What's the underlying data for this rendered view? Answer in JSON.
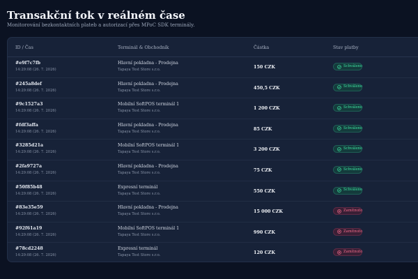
{
  "header": {
    "title": "Transakční tok v reálném čase",
    "subtitle": "Monitorování bezkontaktních plateb a autorizací přes MPoC SDK terminály."
  },
  "table": {
    "columns": {
      "id_time": "ID / Čas",
      "terminal": "Terminál & Obchodník",
      "amount": "Částka",
      "status": "Stav platby"
    },
    "rows": [
      {
        "id": "#e9f7c7fb",
        "time": "14:29:08 (26. 7. 2026)",
        "terminal": "Hlavní pokladna - Prodejna",
        "merchant": "Tapaya Test Store s.r.o.",
        "amount": "150 CZK",
        "status": "Schváleno",
        "status_type": "approved"
      },
      {
        "id": "#245a8def",
        "time": "14:29:08 (26. 7. 2026)",
        "terminal": "Hlavní pokladna - Prodejna",
        "merchant": "Tapaya Test Store s.r.o.",
        "amount": "450,5 CZK",
        "status": "Schváleno",
        "status_type": "approved"
      },
      {
        "id": "#9c1527a3",
        "time": "14:29:08 (26. 7. 2026)",
        "terminal": "Mobilní SoftPOS terminál 1",
        "merchant": "Tapaya Test Store s.r.o.",
        "amount": "1 200 CZK",
        "status": "Schváleno",
        "status_type": "approved"
      },
      {
        "id": "#fdf3affa",
        "time": "14:29:08 (26. 7. 2026)",
        "terminal": "Hlavní pokladna - Prodejna",
        "merchant": "Tapaya Test Store s.r.o.",
        "amount": "85 CZK",
        "status": "Schváleno",
        "status_type": "approved"
      },
      {
        "id": "#3285d21a",
        "time": "14:29:08 (26. 7. 2026)",
        "terminal": "Mobilní SoftPOS terminál 1",
        "merchant": "Tapaya Test Store s.r.o.",
        "amount": "3 200 CZK",
        "status": "Schváleno",
        "status_type": "approved"
      },
      {
        "id": "#2fa9727a",
        "time": "14:29:08 (26. 7. 2026)",
        "terminal": "Hlavní pokladna - Prodejna",
        "merchant": "Tapaya Test Store s.r.o.",
        "amount": "75 CZK",
        "status": "Schváleno",
        "status_type": "approved"
      },
      {
        "id": "#50f85b48",
        "time": "14:29:08 (26. 7. 2026)",
        "terminal": "Expresní terminál",
        "merchant": "Tapaya Test Store s.r.o.",
        "amount": "550 CZK",
        "status": "Schváleno",
        "status_type": "approved"
      },
      {
        "id": "#83e35e59",
        "time": "14:29:08 (26. 7. 2026)",
        "terminal": "Hlavní pokladna - Prodejna",
        "merchant": "Tapaya Test Store s.r.o.",
        "amount": "15 000 CZK",
        "status": "Zamítnuto",
        "status_type": "declined"
      },
      {
        "id": "#92f61a19",
        "time": "14:29:08 (26. 7. 2026)",
        "terminal": "Mobilní SoftPOS terminál 1",
        "merchant": "Tapaya Test Store s.r.o.",
        "amount": "990 CZK",
        "status": "Zamítnuto",
        "status_type": "declined"
      },
      {
        "id": "#78cd2248",
        "time": "14:29:08 (26. 7. 2026)",
        "terminal": "Expresní terminál",
        "merchant": "Tapaya Test Store s.r.o.",
        "amount": "120 CZK",
        "status": "Zamítnuto",
        "status_type": "declined"
      }
    ]
  },
  "icons": {
    "approved": "check-circle-icon",
    "declined": "x-circle-icon"
  },
  "colors": {
    "background": "#0b1222",
    "panel": "#172238",
    "approved": "#3ee0a0",
    "declined": "#f06b8a"
  }
}
